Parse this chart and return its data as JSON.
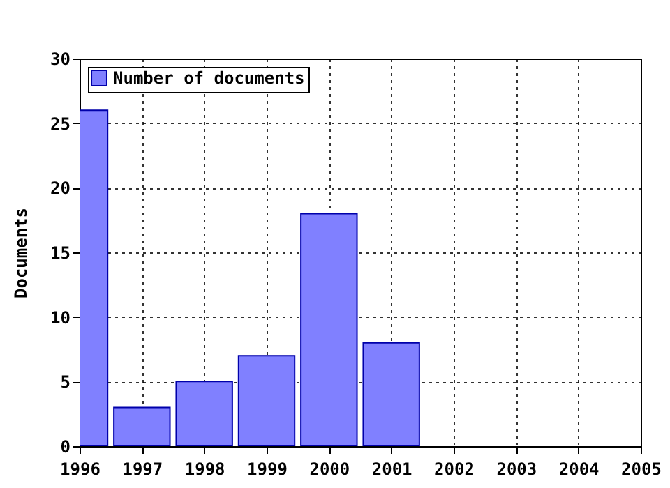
{
  "chart_data": {
    "type": "bar",
    "ylabel": "Documents",
    "x": [
      1996,
      1997,
      1998,
      1999,
      2000,
      2001
    ],
    "series": [
      {
        "name": "Number of documents",
        "color": "#8080ff",
        "values": [
          26,
          3,
          5,
          7,
          18,
          8
        ]
      }
    ],
    "xlim": [
      1996,
      2005
    ],
    "xticks": [
      1996,
      1997,
      1998,
      1999,
      2000,
      2001,
      2002,
      2003,
      2004,
      2005
    ],
    "ylim": [
      0,
      30
    ],
    "yticks": [
      0,
      5,
      10,
      15,
      20,
      25,
      30
    ],
    "grid": true,
    "legend": "top left"
  }
}
